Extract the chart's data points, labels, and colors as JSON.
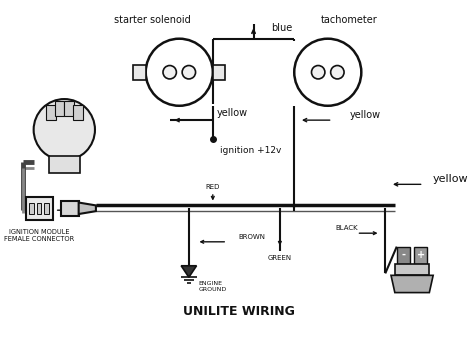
{
  "bg_color": "#ffffff",
  "line_color": "#111111",
  "title": "UNILITE WIRING",
  "title_fontsize": 9,
  "label_fontsize": 7,
  "small_fontsize": 7,
  "labels": {
    "starter_solenoid": "starter solenoid",
    "tachometer": "tachometer",
    "blue": "blue",
    "yellow1": "yellow",
    "yellow2": "yellow",
    "yellow3": "yellow",
    "ignition": "ignition +12v",
    "red": "RED",
    "brown": "BROWN",
    "green": "GREEN",
    "black": "BLACK",
    "engine_ground": "ENGINE\nGROUND",
    "ignition_module": "IGNITION MODULE\nFEMALE CONNECTOR"
  }
}
